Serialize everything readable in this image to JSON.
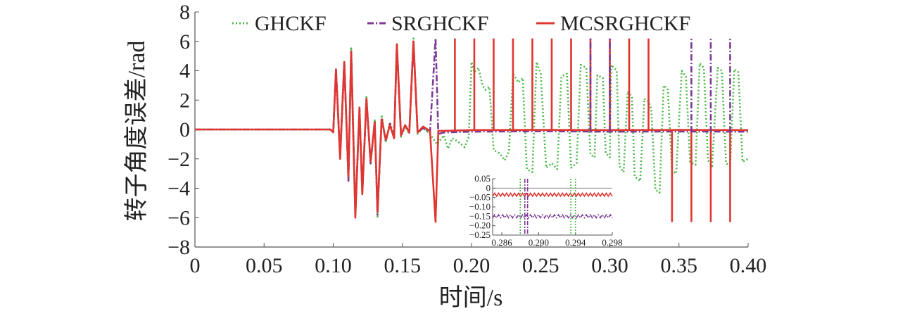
{
  "chart_data": [
    {
      "type": "line",
      "xlabel": "时间/s",
      "ylabel": "转子角度误差/rad",
      "xlim": [
        0,
        0.4
      ],
      "ylim": [
        -8,
        8
      ],
      "x_ticks": [
        0,
        0.05,
        0.1,
        0.15,
        0.2,
        0.25,
        0.3,
        0.35,
        0.4
      ],
      "x_tick_labels": [
        "0",
        "0.05",
        "0.10",
        "0.15",
        "0.20",
        "0.25",
        "0.30",
        "0.35",
        "0.40"
      ],
      "y_ticks": [
        -8,
        -6,
        -4,
        -2,
        0,
        2,
        4,
        6,
        8
      ],
      "y_tick_labels": [
        "−8",
        "−6",
        "−4",
        "−2",
        "0",
        "2",
        "4",
        "6",
        "8"
      ],
      "grid": false,
      "legend_position": "top",
      "series": [
        {
          "name": "GHCKF",
          "color": "#4CB848",
          "dash": "dotted",
          "points": [
            [
              0,
              0
            ],
            [
              0.05,
              0
            ],
            [
              0.098,
              0
            ],
            [
              0.1,
              -0.2
            ],
            [
              0.102,
              4.1
            ],
            [
              0.105,
              -1.8
            ],
            [
              0.108,
              4.6
            ],
            [
              0.111,
              -3.5
            ],
            [
              0.113,
              5.6
            ],
            [
              0.116,
              -5.8
            ],
            [
              0.119,
              1.4
            ],
            [
              0.121,
              -4.4
            ],
            [
              0.124,
              2.3
            ],
            [
              0.127,
              -2.4
            ],
            [
              0.13,
              0.7
            ],
            [
              0.132,
              -6.0
            ],
            [
              0.135,
              1.0
            ],
            [
              0.138,
              -0.9
            ],
            [
              0.141,
              0.5
            ],
            [
              0.144,
              -0.6
            ],
            [
              0.146,
              5.9
            ],
            [
              0.149,
              -0.5
            ],
            [
              0.152,
              0.2
            ],
            [
              0.155,
              -0.3
            ],
            [
              0.158,
              6.2
            ],
            [
              0.161,
              -0.3
            ],
            [
              0.165,
              0.1
            ],
            [
              0.17,
              -0.3
            ],
            [
              0.175,
              -1.0
            ],
            [
              0.18,
              -0.4
            ],
            [
              0.183,
              -1.3
            ],
            [
              0.186,
              -0.6
            ],
            [
              0.19,
              -0.8
            ],
            [
              0.195,
              -1.2
            ],
            [
              0.198,
              -0.5
            ],
            [
              0.2,
              4.6
            ],
            [
              0.202,
              3.9
            ],
            [
              0.205,
              4.2
            ],
            [
              0.208,
              3.0
            ],
            [
              0.21,
              2.7
            ],
            [
              0.213,
              2.9
            ],
            [
              0.216,
              -1.4
            ],
            [
              0.22,
              -1.6
            ],
            [
              0.224,
              -2.1
            ],
            [
              0.227,
              -1.5
            ],
            [
              0.23,
              3.8
            ],
            [
              0.234,
              3.2
            ],
            [
              0.237,
              3.5
            ],
            [
              0.24,
              -2.7
            ],
            [
              0.244,
              -2.9
            ],
            [
              0.247,
              4.6
            ],
            [
              0.25,
              3.8
            ],
            [
              0.254,
              -2.6
            ],
            [
              0.258,
              -2.3
            ],
            [
              0.262,
              -2.7
            ],
            [
              0.265,
              3.6
            ],
            [
              0.269,
              3.8
            ],
            [
              0.272,
              -2.6
            ],
            [
              0.276,
              -2.3
            ],
            [
              0.279,
              4.4
            ],
            [
              0.283,
              4.2
            ],
            [
              0.286,
              -1.7
            ],
            [
              0.289,
              -1.9
            ],
            [
              0.291,
              3.7
            ],
            [
              0.295,
              3.5
            ],
            [
              0.297,
              -1.6
            ],
            [
              0.3,
              -1.9
            ],
            [
              0.301,
              4.4
            ],
            [
              0.305,
              4.0
            ],
            [
              0.307,
              -2.5
            ],
            [
              0.31,
              -2.9
            ],
            [
              0.313,
              2.6
            ],
            [
              0.316,
              2.2
            ],
            [
              0.318,
              -3.2
            ],
            [
              0.322,
              -3.5
            ],
            [
              0.325,
              2.1
            ],
            [
              0.328,
              1.9
            ],
            [
              0.33,
              1.4
            ],
            [
              0.333,
              -4.1
            ],
            [
              0.336,
              -4.3
            ],
            [
              0.339,
              3.0
            ],
            [
              0.342,
              2.7
            ],
            [
              0.345,
              -2.8
            ],
            [
              0.348,
              -3.0
            ],
            [
              0.352,
              4.0
            ],
            [
              0.355,
              3.6
            ],
            [
              0.358,
              -2.2
            ],
            [
              0.362,
              -2.4
            ],
            [
              0.365,
              4.5
            ],
            [
              0.368,
              4.2
            ],
            [
              0.371,
              -2.1
            ],
            [
              0.374,
              -2.5
            ],
            [
              0.378,
              4.2
            ],
            [
              0.381,
              4.0
            ],
            [
              0.384,
              -2.3
            ],
            [
              0.387,
              -2.5
            ],
            [
              0.39,
              4.1
            ],
            [
              0.393,
              3.9
            ],
            [
              0.396,
              -2.2
            ],
            [
              0.4,
              -2.0
            ]
          ]
        },
        {
          "name": "SRGHCKF",
          "color": "#7B3A96",
          "dash": "dashdot",
          "points": [
            [
              0,
              0
            ],
            [
              0.098,
              0
            ],
            [
              0.1,
              -0.2
            ],
            [
              0.102,
              4.1
            ],
            [
              0.105,
              -1.8
            ],
            [
              0.108,
              4.6
            ],
            [
              0.111,
              -3.5
            ],
            [
              0.113,
              5.4
            ],
            [
              0.116,
              -5.7
            ],
            [
              0.119,
              1.4
            ],
            [
              0.121,
              -4.3
            ],
            [
              0.124,
              2.0
            ],
            [
              0.127,
              -2.3
            ],
            [
              0.13,
              0.6
            ],
            [
              0.132,
              -5.8
            ],
            [
              0.135,
              0.8
            ],
            [
              0.138,
              -0.8
            ],
            [
              0.141,
              0.4
            ],
            [
              0.144,
              -0.5
            ],
            [
              0.146,
              5.8
            ],
            [
              0.149,
              -0.4
            ],
            [
              0.152,
              0.3
            ],
            [
              0.155,
              -0.2
            ],
            [
              0.158,
              6.0
            ],
            [
              0.161,
              -0.2
            ],
            [
              0.165,
              0.1
            ],
            [
              0.17,
              -0.2
            ],
            [
              0.174,
              6.2
            ],
            [
              0.176,
              -0.3
            ],
            [
              0.18,
              -0.2
            ],
            [
              0.2,
              -0.15
            ],
            [
              0.25,
              -0.12
            ],
            [
              0.3,
              -0.15
            ],
            [
              0.35,
              -0.14
            ],
            [
              0.4,
              -0.15
            ]
          ]
        },
        {
          "name": "MCSRGHCKF",
          "color": "#E03530",
          "dash": "solid",
          "points": [
            [
              0,
              0
            ],
            [
              0.098,
              0
            ],
            [
              0.1,
              -0.2
            ],
            [
              0.102,
              4.1
            ],
            [
              0.105,
              -2.0
            ],
            [
              0.108,
              4.6
            ],
            [
              0.111,
              -3.2
            ],
            [
              0.113,
              5.3
            ],
            [
              0.116,
              -6.0
            ],
            [
              0.119,
              1.5
            ],
            [
              0.121,
              -4.4
            ],
            [
              0.124,
              2.1
            ],
            [
              0.127,
              -2.2
            ],
            [
              0.13,
              0.5
            ],
            [
              0.132,
              -5.6
            ],
            [
              0.135,
              0.7
            ],
            [
              0.138,
              -0.7
            ],
            [
              0.141,
              0.3
            ],
            [
              0.144,
              -0.6
            ],
            [
              0.146,
              5.8
            ],
            [
              0.149,
              -0.4
            ],
            [
              0.152,
              0.3
            ],
            [
              0.155,
              -0.2
            ],
            [
              0.158,
              6.0
            ],
            [
              0.161,
              -0.2
            ],
            [
              0.165,
              0.2
            ],
            [
              0.17,
              -0.1
            ],
            [
              0.174,
              -6.3
            ],
            [
              0.176,
              -0.1
            ],
            [
              0.2,
              -0.04
            ],
            [
              0.25,
              -0.03
            ],
            [
              0.3,
              -0.04
            ],
            [
              0.35,
              -0.03
            ],
            [
              0.4,
              -0.04
            ]
          ]
        }
      ],
      "spikes": [
        {
          "series": "MCSRGHCKF",
          "x": [
            0.188,
            0.202,
            0.216,
            0.23,
            0.244,
            0.258,
            0.272,
            0.286,
            0.3,
            0.314,
            0.328
          ],
          "y_from": -0.1,
          "y_to": 6.2
        },
        {
          "series": "MCSRGHCKF",
          "x": [
            0.345,
            0.359,
            0.373,
            0.387
          ],
          "y_from": -0.1,
          "y_to": -6.3
        },
        {
          "series": "SRGHCKF",
          "x": [
            0.286,
            0.3,
            0.359,
            0.373,
            0.387
          ],
          "y_from": -0.2,
          "y_to": 6.2
        }
      ]
    },
    {
      "type": "line",
      "xlim": [
        0.285,
        0.298
      ],
      "ylim": [
        -0.25,
        0.05
      ],
      "x_ticks": [
        0.286,
        0.29,
        0.294,
        0.298
      ],
      "x_tick_labels": [
        "0.286",
        "0.290",
        "0.294",
        "0.298"
      ],
      "y_ticks": [
        0.05,
        0,
        -0.05,
        -0.1,
        -0.15,
        -0.2,
        -0.25
      ],
      "y_tick_labels": [
        "0.05",
        "0",
        "−0.05",
        "−0.10",
        "−0.15",
        "−0.20",
        "−0.25"
      ],
      "series": [
        {
          "name": "MCSRGHCKF",
          "color": "#E03530",
          "dash": "solid",
          "mean": -0.035,
          "amp": 0.008
        },
        {
          "name": "SRGHCKF",
          "color": "#7B3A96",
          "dash": "dashdot",
          "mean": -0.15,
          "amp": 0.008
        }
      ],
      "verticals": [
        {
          "series": "SRGHCKF",
          "x": 0.2885
        },
        {
          "series": "SRGHCKF",
          "x": 0.2888
        },
        {
          "series": "GHCKF",
          "x": 0.288
        },
        {
          "series": "GHCKF",
          "x": 0.2935
        },
        {
          "series": "GHCKF",
          "x": 0.294
        }
      ]
    }
  ]
}
